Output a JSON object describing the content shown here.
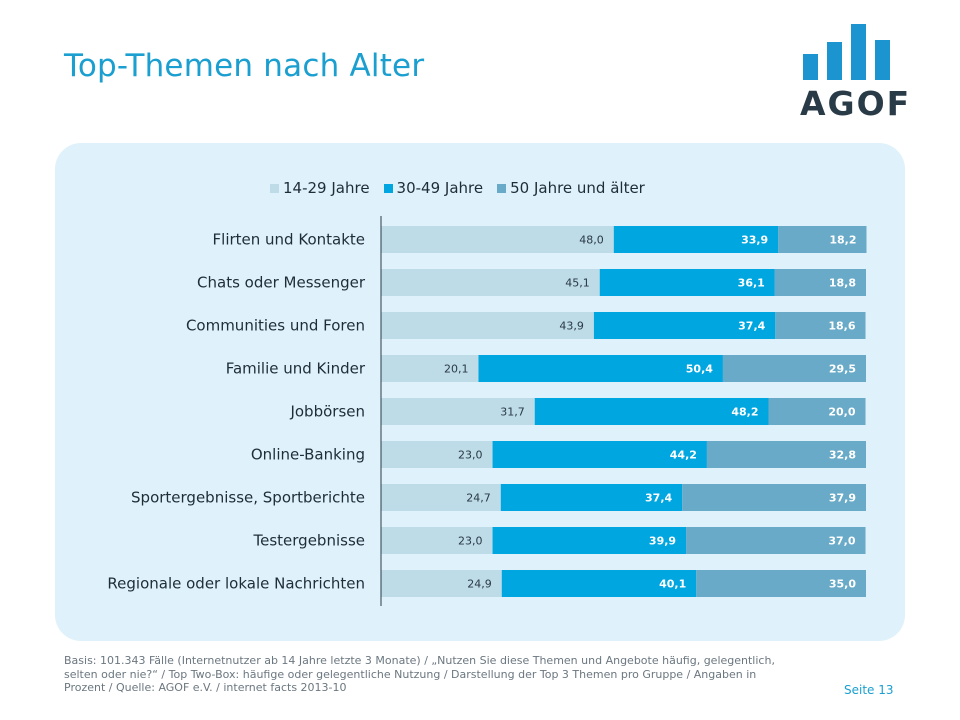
{
  "title": "Top-Themen nach Alter",
  "logo": {
    "text": "AGOF",
    "color": "#1b94cf"
  },
  "chart_data": {
    "type": "bar",
    "orientation": "horizontal",
    "stacked": true,
    "categories": [
      "Flirten und Kontakte",
      "Chats oder Messenger",
      "Communities und Foren",
      "Familie und Kinder",
      "Jobbörsen",
      "Online-Banking",
      "Sportergebnisse, Sportberichte",
      "Testergebnisse",
      "Regionale oder lokale Nachrichten"
    ],
    "series": [
      {
        "name": "14-29 Jahre",
        "color": "#bedbe8",
        "values": [
          48.0,
          45.1,
          43.9,
          20.1,
          31.7,
          23.0,
          24.7,
          23.0,
          24.9
        ],
        "labels": [
          "48,0",
          "45,1",
          "43,9",
          "20,1",
          "31,7",
          "23,0",
          "24,7",
          "23,0",
          "24,9"
        ]
      },
      {
        "name": "30-49 Jahre",
        "color": "#00a6e0",
        "values": [
          33.9,
          36.1,
          37.4,
          50.4,
          48.2,
          44.2,
          37.4,
          39.9,
          40.1
        ],
        "labels": [
          "33,9",
          "36,1",
          "37,4",
          "50,4",
          "48,2",
          "44,2",
          "37,4",
          "39,9",
          "40,1"
        ]
      },
      {
        "name": "50 Jahre und älter",
        "color": "#68aac7",
        "values": [
          18.2,
          18.8,
          18.6,
          29.5,
          20.0,
          32.8,
          37.9,
          37.0,
          35.0
        ],
        "labels": [
          "18,2",
          "18,8",
          "18,6",
          "29,5",
          "20,0",
          "32,8",
          "37,9",
          "37,0",
          "35,0"
        ]
      }
    ],
    "xlim": [
      0,
      100
    ],
    "legend": "top-center",
    "grid": false
  },
  "footnote": "Basis: 101.343 Fälle (Internetnutzer ab 14 Jahre letzte 3 Monate) / „Nutzen Sie diese Themen und Angebote häufig, gelegentlich, selten oder nie?“ / Top Two-Box: häufige oder gelegentliche Nutzung / Darstellung der Top 3 Themen pro Gruppe / Angaben in Prozent / Quelle: AGOF e.V. / internet facts 2013-10",
  "page_number": "Seite 13"
}
